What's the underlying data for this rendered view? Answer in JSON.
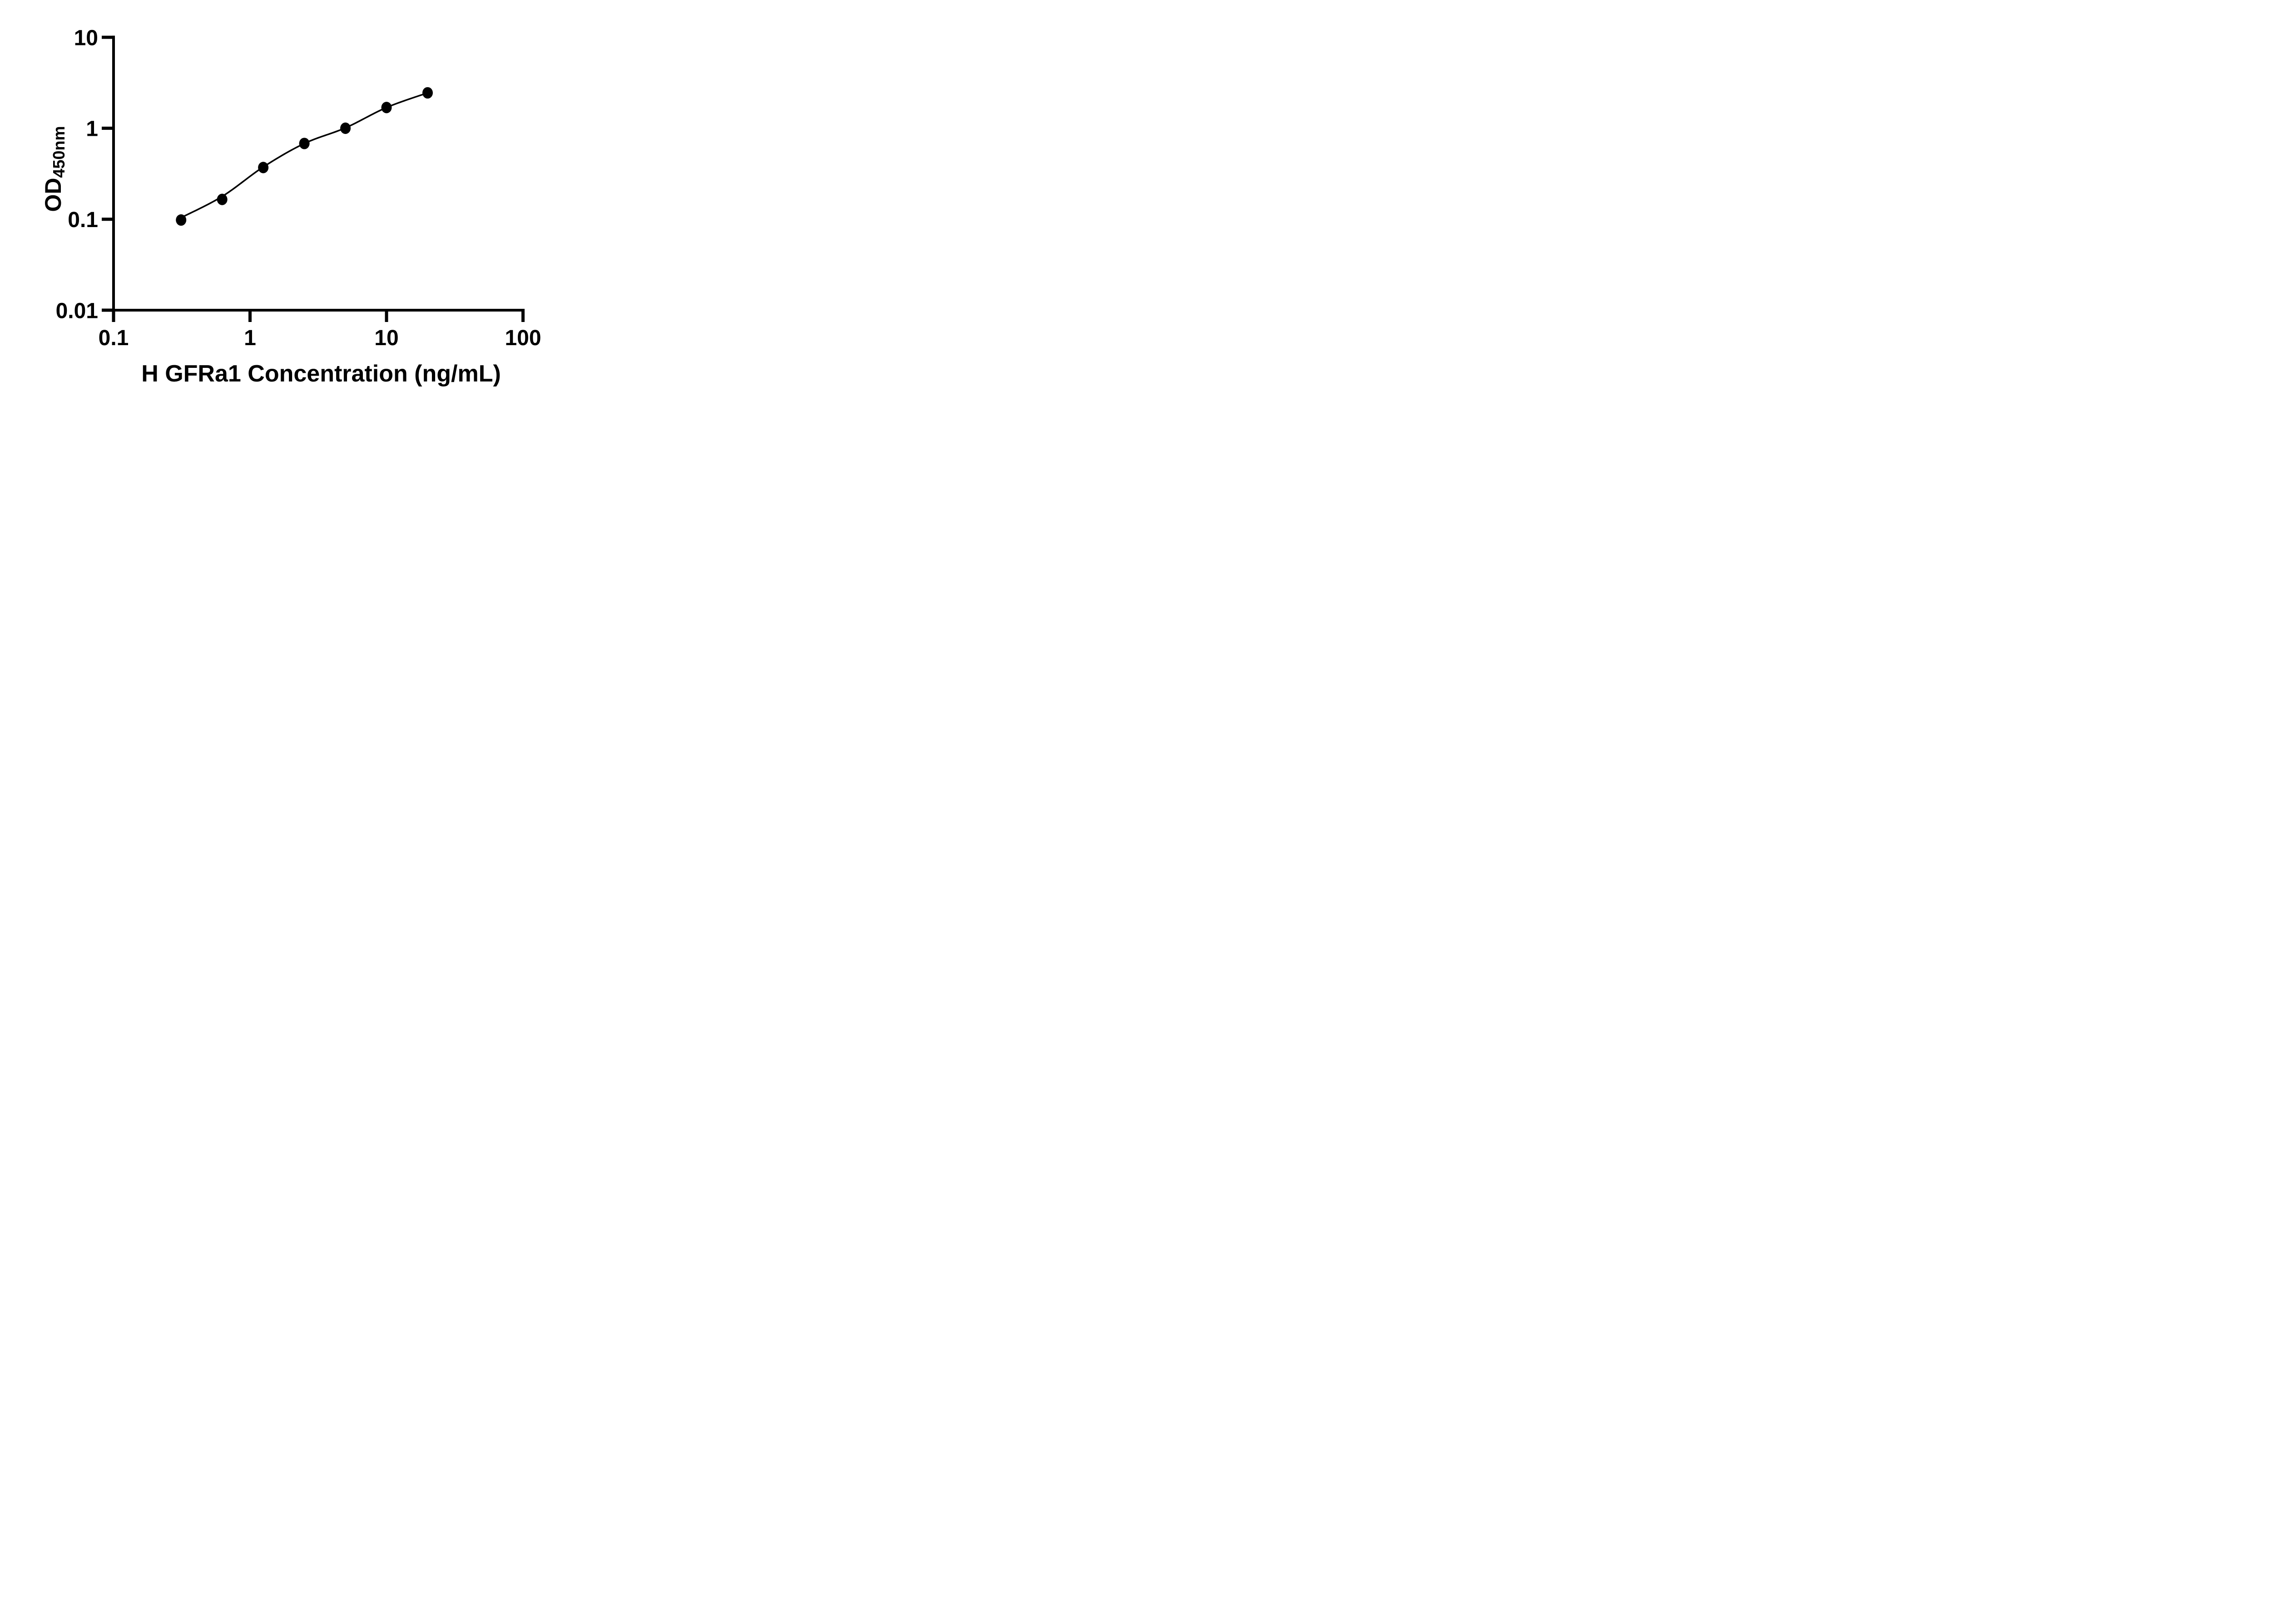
{
  "page": {
    "background": "#ffffff",
    "foreground": "#000000"
  },
  "chart_data": {
    "type": "scatter",
    "title": "",
    "xlabel": "H GFRa1 Concentration (ng/mL)",
    "ylabel": "OD450nm",
    "ylabel_main": "OD",
    "ylabel_sub": "450nm",
    "xscale": "log",
    "yscale": "log",
    "xlim": [
      0.1,
      100
    ],
    "ylim": [
      0.01,
      10
    ],
    "grid": false,
    "legend_position": "none",
    "x_ticks": {
      "values": [
        0.1,
        1,
        10,
        100
      ],
      "labels": [
        "0.1",
        "1",
        "10",
        "100"
      ]
    },
    "y_ticks": {
      "values": [
        10,
        1,
        0.1,
        0.01
      ],
      "labels": [
        "10",
        "1",
        "0.1",
        "0.01"
      ]
    },
    "marker_color": "#000000",
    "line_color": "#000000",
    "series": [
      {
        "marker": "circle",
        "points": [
          {
            "x": 0.3125,
            "y": 0.098
          },
          {
            "x": 0.625,
            "y": 0.165
          },
          {
            "x": 1.25,
            "y": 0.37
          },
          {
            "x": 2.5,
            "y": 0.68
          },
          {
            "x": 5,
            "y": 1.0
          },
          {
            "x": 10,
            "y": 1.69
          },
          {
            "x": 20,
            "y": 2.45
          }
        ]
      }
    ],
    "fit_curve": {
      "anchors": [
        {
          "x": 0.3125,
          "y": 0.104
        },
        {
          "x": 0.625,
          "y": 0.178
        },
        {
          "x": 1.25,
          "y": 0.375
        },
        {
          "x": 2.5,
          "y": 0.68
        },
        {
          "x": 5,
          "y": 1.01
        },
        {
          "x": 10,
          "y": 1.69
        },
        {
          "x": 20,
          "y": 2.45
        }
      ]
    }
  }
}
